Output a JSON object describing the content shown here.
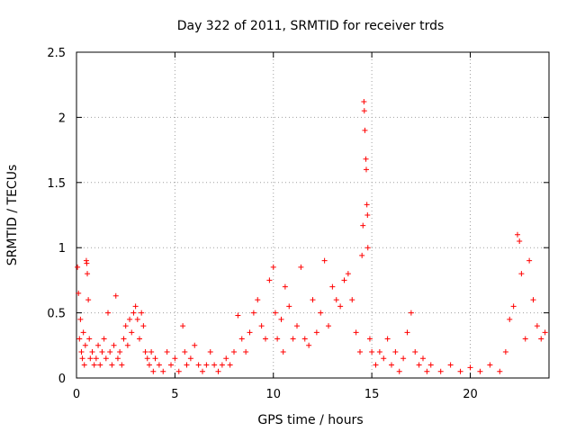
{
  "chart_data": {
    "type": "scatter",
    "title": "Day 322 of 2011, SRMTID for receiver trds",
    "xlabel": "GPS time / hours",
    "ylabel": "SRMTID / TECUs",
    "xlim": [
      0,
      24
    ],
    "ylim": [
      0,
      2.5
    ],
    "x_ticks": [
      0,
      5,
      10,
      15,
      20
    ],
    "y_ticks": [
      0,
      0.5,
      1,
      1.5,
      2,
      2.5
    ],
    "x_tick_labels": [
      "0",
      "5",
      "10",
      "15",
      "20"
    ],
    "y_tick_labels": [
      "0",
      "0.5",
      "1",
      "1.5",
      "2",
      "2.5"
    ],
    "grid": true,
    "marker": "+",
    "color": "#ff0000",
    "series": [
      {
        "name": "",
        "points": [
          [
            0.05,
            0.85
          ],
          [
            0.1,
            0.65
          ],
          [
            0.15,
            0.3
          ],
          [
            0.2,
            0.45
          ],
          [
            0.25,
            0.2
          ],
          [
            0.3,
            0.15
          ],
          [
            0.35,
            0.35
          ],
          [
            0.4,
            0.1
          ],
          [
            0.45,
            0.25
          ],
          [
            0.5,
            0.9
          ],
          [
            0.52,
            0.88
          ],
          [
            0.55,
            0.8
          ],
          [
            0.6,
            0.6
          ],
          [
            0.65,
            0.3
          ],
          [
            0.7,
            0.15
          ],
          [
            0.8,
            0.2
          ],
          [
            0.9,
            0.1
          ],
          [
            1.0,
            0.15
          ],
          [
            1.1,
            0.25
          ],
          [
            1.2,
            0.1
          ],
          [
            1.3,
            0.2
          ],
          [
            1.4,
            0.3
          ],
          [
            1.5,
            0.15
          ],
          [
            1.6,
            0.5
          ],
          [
            1.7,
            0.2
          ],
          [
            1.8,
            0.1
          ],
          [
            1.9,
            0.25
          ],
          [
            2.0,
            0.63
          ],
          [
            2.1,
            0.15
          ],
          [
            2.2,
            0.2
          ],
          [
            2.3,
            0.1
          ],
          [
            2.4,
            0.3
          ],
          [
            2.5,
            0.4
          ],
          [
            2.6,
            0.25
          ],
          [
            2.7,
            0.45
          ],
          [
            2.8,
            0.35
          ],
          [
            2.9,
            0.5
          ],
          [
            3.0,
            0.55
          ],
          [
            3.1,
            0.45
          ],
          [
            3.2,
            0.3
          ],
          [
            3.3,
            0.5
          ],
          [
            3.4,
            0.4
          ],
          [
            3.5,
            0.2
          ],
          [
            3.6,
            0.15
          ],
          [
            3.7,
            0.1
          ],
          [
            3.8,
            0.2
          ],
          [
            3.9,
            0.05
          ],
          [
            4.0,
            0.15
          ],
          [
            4.2,
            0.1
          ],
          [
            4.4,
            0.05
          ],
          [
            4.6,
            0.2
          ],
          [
            4.8,
            0.1
          ],
          [
            5.0,
            0.15
          ],
          [
            5.2,
            0.05
          ],
          [
            5.4,
            0.4
          ],
          [
            5.5,
            0.2
          ],
          [
            5.6,
            0.1
          ],
          [
            5.8,
            0.15
          ],
          [
            6.0,
            0.25
          ],
          [
            6.2,
            0.1
          ],
          [
            6.4,
            0.05
          ],
          [
            6.6,
            0.1
          ],
          [
            6.8,
            0.2
          ],
          [
            7.0,
            0.1
          ],
          [
            7.2,
            0.05
          ],
          [
            7.4,
            0.1
          ],
          [
            7.6,
            0.15
          ],
          [
            7.8,
            0.1
          ],
          [
            8.0,
            0.2
          ],
          [
            8.2,
            0.48
          ],
          [
            8.4,
            0.3
          ],
          [
            8.6,
            0.2
          ],
          [
            8.8,
            0.35
          ],
          [
            9.0,
            0.5
          ],
          [
            9.2,
            0.6
          ],
          [
            9.4,
            0.4
          ],
          [
            9.6,
            0.3
          ],
          [
            9.8,
            0.75
          ],
          [
            10.0,
            0.85
          ],
          [
            10.1,
            0.5
          ],
          [
            10.2,
            0.3
          ],
          [
            10.4,
            0.45
          ],
          [
            10.5,
            0.2
          ],
          [
            10.6,
            0.7
          ],
          [
            10.8,
            0.55
          ],
          [
            11.0,
            0.3
          ],
          [
            11.2,
            0.4
          ],
          [
            11.4,
            0.85
          ],
          [
            11.6,
            0.3
          ],
          [
            11.8,
            0.25
          ],
          [
            12.0,
            0.6
          ],
          [
            12.2,
            0.35
          ],
          [
            12.4,
            0.5
          ],
          [
            12.6,
            0.9
          ],
          [
            12.8,
            0.4
          ],
          [
            13.0,
            0.7
          ],
          [
            13.2,
            0.6
          ],
          [
            13.4,
            0.55
          ],
          [
            13.6,
            0.75
          ],
          [
            13.8,
            0.8
          ],
          [
            14.0,
            0.6
          ],
          [
            14.2,
            0.35
          ],
          [
            14.4,
            0.2
          ],
          [
            14.5,
            0.94
          ],
          [
            14.55,
            1.17
          ],
          [
            14.6,
            2.12
          ],
          [
            14.62,
            2.05
          ],
          [
            14.65,
            1.9
          ],
          [
            14.7,
            1.68
          ],
          [
            14.72,
            1.6
          ],
          [
            14.75,
            1.33
          ],
          [
            14.78,
            1.25
          ],
          [
            14.8,
            1.0
          ],
          [
            14.9,
            0.3
          ],
          [
            15.0,
            0.2
          ],
          [
            15.2,
            0.1
          ],
          [
            15.4,
            0.2
          ],
          [
            15.6,
            0.15
          ],
          [
            15.8,
            0.3
          ],
          [
            16.0,
            0.1
          ],
          [
            16.2,
            0.2
          ],
          [
            16.4,
            0.05
          ],
          [
            16.6,
            0.15
          ],
          [
            16.8,
            0.35
          ],
          [
            17.0,
            0.5
          ],
          [
            17.2,
            0.2
          ],
          [
            17.4,
            0.1
          ],
          [
            17.6,
            0.15
          ],
          [
            17.8,
            0.05
          ],
          [
            18.0,
            0.1
          ],
          [
            18.5,
            0.05
          ],
          [
            19.0,
            0.1
          ],
          [
            19.5,
            0.05
          ],
          [
            20.0,
            0.08
          ],
          [
            20.5,
            0.05
          ],
          [
            21.0,
            0.1
          ],
          [
            21.5,
            0.05
          ],
          [
            21.8,
            0.2
          ],
          [
            22.0,
            0.45
          ],
          [
            22.2,
            0.55
          ],
          [
            22.4,
            1.1
          ],
          [
            22.5,
            1.05
          ],
          [
            22.6,
            0.8
          ],
          [
            22.8,
            0.3
          ],
          [
            23.0,
            0.9
          ],
          [
            23.2,
            0.6
          ],
          [
            23.4,
            0.4
          ],
          [
            23.6,
            0.3
          ],
          [
            23.8,
            0.35
          ]
        ]
      }
    ]
  }
}
